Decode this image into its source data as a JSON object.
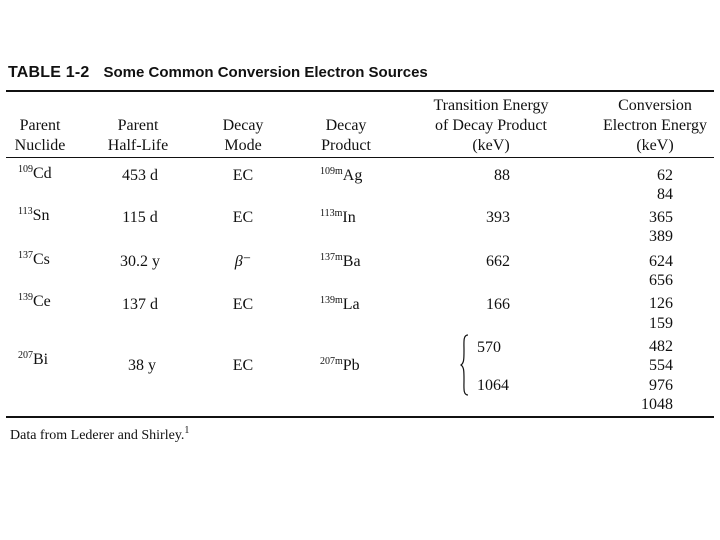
{
  "table": {
    "label": "TABLE 1-2",
    "title": "Some Common Conversion Electron Sources",
    "headers": {
      "parent_nuclide": [
        "Parent",
        "Nuclide"
      ],
      "half_life": [
        "Parent",
        "Half-Life"
      ],
      "decay_mode": [
        "Decay",
        "Mode"
      ],
      "decay_product": [
        "Decay",
        "Product"
      ],
      "transition_energy": [
        "Transition Energy",
        "of Decay Product",
        "(keV)"
      ],
      "conversion_energy": [
        "Conversion",
        "Electron Energy",
        "(keV)"
      ]
    },
    "rows": [
      {
        "parent_mass": "109",
        "parent_symbol": "Cd",
        "half_life": "453 d",
        "mode": "EC",
        "product_mass": "109m",
        "product_symbol": "Ag",
        "transition": [
          "88"
        ],
        "conversion": [
          "62",
          "84"
        ]
      },
      {
        "parent_mass": "113",
        "parent_symbol": "Sn",
        "half_life": "115 d",
        "mode": "EC",
        "product_mass": "113m",
        "product_symbol": "In",
        "transition": [
          "393"
        ],
        "conversion": [
          "365",
          "389"
        ]
      },
      {
        "parent_mass": "137",
        "parent_symbol": "Cs",
        "half_life": "30.2 y",
        "mode": "β⁻",
        "product_mass": "137m",
        "product_symbol": "Ba",
        "transition": [
          "662"
        ],
        "conversion": [
          "624",
          "656"
        ]
      },
      {
        "parent_mass": "139",
        "parent_symbol": "Ce",
        "half_life": "137 d",
        "mode": "EC",
        "product_mass": "139m",
        "product_symbol": "La",
        "transition": [
          "166"
        ],
        "conversion": [
          "126",
          "159"
        ]
      },
      {
        "parent_mass": "207",
        "parent_symbol": "Bi",
        "half_life": "38 y",
        "mode": "EC",
        "product_mass": "207m",
        "product_symbol": "Pb",
        "transition": [
          "570",
          "1064"
        ],
        "conversion": [
          "482",
          "554",
          "976",
          "1048"
        ]
      }
    ],
    "footnote": "Data from Lederer and Shirley.",
    "footnote_ref": "1"
  }
}
